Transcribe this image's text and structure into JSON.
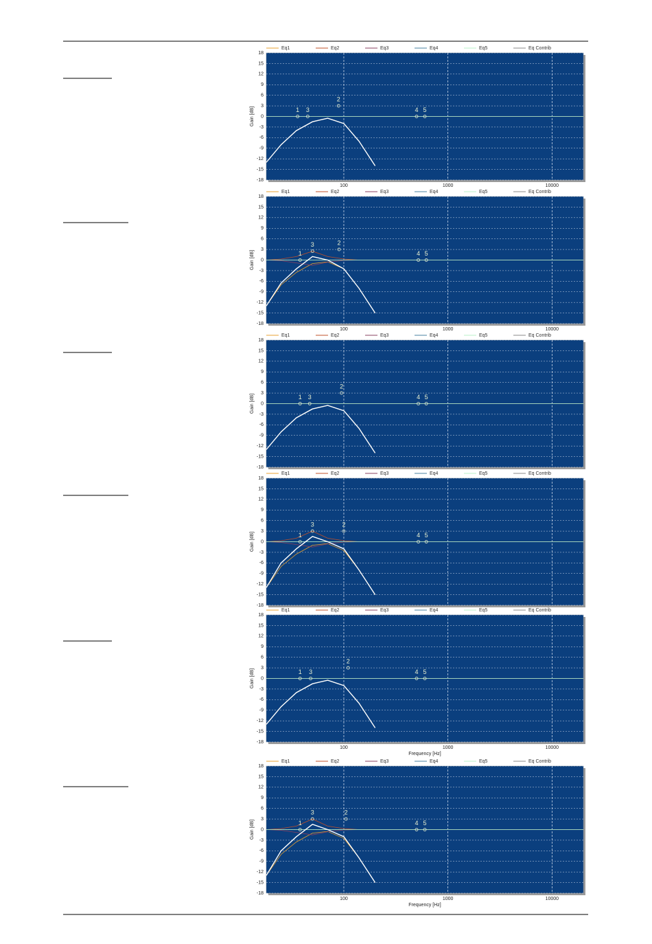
{
  "chart_data": [
    {
      "type": "line",
      "xscale": "log",
      "xlim": [
        18,
        20000
      ],
      "ylim": [
        -18,
        18
      ],
      "ylabel": "Gain [dB]",
      "grid": true,
      "xticks": [
        100,
        1000,
        10000
      ],
      "yticks": [
        18,
        15,
        12,
        9,
        6,
        3,
        0,
        -3,
        -6,
        -9,
        -12,
        -15,
        -18
      ],
      "x": [
        18,
        25,
        35,
        50,
        70,
        100,
        140,
        200,
        280,
        400,
        1000,
        20000
      ],
      "series": [
        {
          "name": "Eq1",
          "color": "#e8a030",
          "values": [
            -13,
            -8,
            -4,
            -1.5,
            -0.5,
            -2,
            -7,
            -14,
            null,
            null,
            null,
            null
          ]
        },
        {
          "name": "Eq2",
          "color": "#c0502a",
          "values": [
            0,
            0,
            0,
            0,
            0,
            0,
            0,
            0,
            0,
            0,
            0,
            0
          ]
        },
        {
          "name": "Eq3",
          "color": "#8a4060",
          "values": [
            0,
            0,
            0,
            0,
            0,
            0,
            0,
            0,
            0,
            0,
            0,
            0
          ]
        },
        {
          "name": "Eq4",
          "color": "#4a80a0",
          "values": [
            0,
            0,
            0,
            0,
            0,
            0,
            0,
            0,
            0,
            0,
            0,
            0
          ]
        },
        {
          "name": "Eq5",
          "color": "#b8f0c8",
          "values": [
            0,
            0,
            0,
            0,
            0,
            0,
            0,
            0,
            0,
            0,
            0,
            0
          ]
        },
        {
          "name": "Eq Contrib",
          "color": "#ffffff",
          "values": [
            -13,
            -8,
            -4,
            -1.5,
            -0.5,
            -2,
            -7,
            -14,
            null,
            null,
            null,
            null
          ]
        }
      ],
      "markers": [
        {
          "label": "1",
          "x": 36,
          "y": 0
        },
        {
          "label": "3",
          "x": 45,
          "y": 0
        },
        {
          "label": "2",
          "x": 89,
          "y": 3
        },
        {
          "label": "4",
          "x": 500,
          "y": 0
        },
        {
          "label": "5",
          "x": 600,
          "y": 0
        }
      ]
    },
    {
      "type": "line",
      "xscale": "log",
      "xlim": [
        18,
        20000
      ],
      "ylim": [
        -18,
        18
      ],
      "ylabel": "Gain [dB]",
      "grid": true,
      "xticks": [
        100,
        1000,
        10000
      ],
      "yticks": [
        18,
        15,
        12,
        9,
        6,
        3,
        0,
        -3,
        -6,
        -9,
        -12,
        -15,
        -18
      ],
      "x": [
        18,
        25,
        35,
        50,
        70,
        100,
        140,
        200,
        280,
        400,
        1000,
        20000
      ],
      "series": [
        {
          "name": "Eq1",
          "color": "#e8a030",
          "values": [
            -13,
            -7,
            -3.5,
            -1,
            -0.5,
            -2.5,
            -8,
            -15,
            null,
            null,
            null,
            null
          ]
        },
        {
          "name": "Eq2",
          "color": "#c0502a",
          "values": [
            0,
            0.3,
            1,
            2.5,
            1,
            0.3,
            0,
            0,
            0,
            0,
            0,
            0
          ]
        },
        {
          "name": "Eq3",
          "color": "#8a4060",
          "values": [
            0,
            -0.2,
            -0.8,
            -1.5,
            -0.6,
            -0.1,
            0,
            0,
            0,
            0,
            0,
            0
          ]
        },
        {
          "name": "Eq4",
          "color": "#4a80a0",
          "values": [
            0,
            0,
            0,
            0,
            0,
            0,
            0,
            0,
            0,
            0,
            0,
            0
          ]
        },
        {
          "name": "Eq5",
          "color": "#b8f0c8",
          "values": [
            0,
            0,
            0,
            0,
            0,
            0,
            0,
            0,
            0,
            0,
            0,
            0
          ]
        },
        {
          "name": "Eq Contrib",
          "color": "#ffffff",
          "values": [
            -13,
            -6.5,
            -2.5,
            1,
            0,
            -2.5,
            -8,
            -15,
            null,
            null,
            null,
            null
          ]
        }
      ],
      "markers": [
        {
          "label": "1",
          "x": 38,
          "y": 0
        },
        {
          "label": "3",
          "x": 50,
          "y": 2.5
        },
        {
          "label": "2",
          "x": 90,
          "y": 3
        },
        {
          "label": "4",
          "x": 520,
          "y": 0
        },
        {
          "label": "5",
          "x": 620,
          "y": 0
        }
      ]
    },
    {
      "type": "line",
      "xscale": "log",
      "xlim": [
        18,
        20000
      ],
      "ylim": [
        -18,
        18
      ],
      "ylabel": "Gain [dB]",
      "grid": true,
      "xticks": [
        100,
        1000,
        10000
      ],
      "yticks": [
        18,
        15,
        12,
        9,
        6,
        3,
        0,
        -3,
        -6,
        -9,
        -12,
        -15,
        -18
      ],
      "x": [
        18,
        25,
        35,
        50,
        70,
        100,
        140,
        200,
        280,
        400,
        1000,
        20000
      ],
      "series": [
        {
          "name": "Eq1",
          "color": "#e8a030",
          "values": [
            -13,
            -8,
            -4,
            -1.5,
            -0.5,
            -2,
            -7,
            -14,
            null,
            null,
            null,
            null
          ]
        },
        {
          "name": "Eq2",
          "color": "#c0502a",
          "values": [
            0,
            0,
            0,
            0,
            0,
            0,
            0,
            0,
            0,
            0,
            0,
            0
          ]
        },
        {
          "name": "Eq3",
          "color": "#8a4060",
          "values": [
            0,
            0,
            0,
            0,
            0,
            0,
            0,
            0,
            0,
            0,
            0,
            0
          ]
        },
        {
          "name": "Eq4",
          "color": "#4a80a0",
          "values": [
            0,
            0,
            0,
            0,
            0,
            0,
            0,
            0,
            0,
            0,
            0,
            0
          ]
        },
        {
          "name": "Eq5",
          "color": "#b8f0c8",
          "values": [
            0,
            0,
            0,
            0,
            0,
            0,
            0,
            0,
            0,
            0,
            0,
            0
          ]
        },
        {
          "name": "Eq Contrib",
          "color": "#ffffff",
          "values": [
            -13,
            -8,
            -4,
            -1.5,
            -0.5,
            -2,
            -7,
            -14,
            null,
            null,
            null,
            null
          ]
        }
      ],
      "markers": [
        {
          "label": "1",
          "x": 38,
          "y": 0
        },
        {
          "label": "3",
          "x": 47,
          "y": 0
        },
        {
          "label": "2",
          "x": 95,
          "y": 3
        },
        {
          "label": "4",
          "x": 520,
          "y": 0
        },
        {
          "label": "5",
          "x": 620,
          "y": 0
        }
      ]
    },
    {
      "type": "line",
      "xscale": "log",
      "xlim": [
        18,
        20000
      ],
      "ylim": [
        -18,
        18
      ],
      "ylabel": "Gain [dB]",
      "grid": true,
      "xticks": [
        100,
        1000,
        10000
      ],
      "yticks": [
        18,
        15,
        12,
        9,
        6,
        3,
        0,
        -3,
        -6,
        -9,
        -12,
        -15,
        -18
      ],
      "x": [
        18,
        25,
        35,
        50,
        70,
        100,
        140,
        200,
        280,
        400,
        1000,
        20000
      ],
      "series": [
        {
          "name": "Eq1",
          "color": "#e8a030",
          "values": [
            -13,
            -7,
            -3.5,
            -1,
            -0.5,
            -2.5,
            -8,
            -15,
            null,
            null,
            null,
            null
          ]
        },
        {
          "name": "Eq2",
          "color": "#c0502a",
          "values": [
            0,
            0.3,
            1,
            3,
            1,
            0.3,
            0,
            0,
            0,
            0,
            0,
            0
          ]
        },
        {
          "name": "Eq3",
          "color": "#8a4060",
          "values": [
            0,
            -0.2,
            -0.8,
            -1.5,
            -0.6,
            -0.1,
            0,
            0,
            0,
            0,
            0,
            0
          ]
        },
        {
          "name": "Eq4",
          "color": "#4a80a0",
          "values": [
            0,
            0,
            0,
            0,
            0,
            0,
            0,
            0,
            0,
            0,
            0,
            0
          ]
        },
        {
          "name": "Eq5",
          "color": "#b8f0c8",
          "values": [
            0,
            0,
            0,
            0,
            0,
            0,
            0,
            0,
            0,
            0,
            0,
            0
          ]
        },
        {
          "name": "Eq Contrib",
          "color": "#ffffff",
          "values": [
            -13,
            -6,
            -2,
            1.5,
            0,
            -2,
            -8,
            -15,
            null,
            null,
            null,
            null
          ]
        }
      ],
      "markers": [
        {
          "label": "1",
          "x": 38,
          "y": 0
        },
        {
          "label": "3",
          "x": 50,
          "y": 3
        },
        {
          "label": "2",
          "x": 100,
          "y": 3
        },
        {
          "label": "4",
          "x": 520,
          "y": 0
        },
        {
          "label": "5",
          "x": 620,
          "y": 0
        }
      ]
    },
    {
      "type": "line",
      "xscale": "log",
      "xlim": [
        18,
        20000
      ],
      "ylim": [
        -18,
        18
      ],
      "ylabel": "Gain [dB]",
      "xlabel": "Frequency [Hz]",
      "grid": true,
      "xticks": [
        100,
        1000,
        10000
      ],
      "yticks": [
        18,
        15,
        12,
        9,
        6,
        3,
        0,
        -3,
        -6,
        -9,
        -12,
        -15,
        -18
      ],
      "x": [
        18,
        25,
        35,
        50,
        70,
        100,
        140,
        200,
        280,
        400,
        1000,
        20000
      ],
      "series": [
        {
          "name": "Eq1",
          "color": "#e8a030",
          "values": [
            -13,
            -8,
            -4,
            -1.5,
            -0.5,
            -2,
            -7,
            -14,
            null,
            null,
            null,
            null
          ]
        },
        {
          "name": "Eq2",
          "color": "#c0502a",
          "values": [
            0,
            0,
            0,
            0,
            0,
            0,
            0,
            0,
            0,
            0,
            0,
            0
          ]
        },
        {
          "name": "Eq3",
          "color": "#8a4060",
          "values": [
            0,
            0,
            0,
            0,
            0,
            0,
            0,
            0,
            0,
            0,
            0,
            0
          ]
        },
        {
          "name": "Eq4",
          "color": "#4a80a0",
          "values": [
            0,
            0,
            0,
            0,
            0,
            0,
            0,
            0,
            0,
            0,
            0,
            0
          ]
        },
        {
          "name": "Eq5",
          "color": "#b8f0c8",
          "values": [
            0,
            0,
            0,
            0,
            0,
            0,
            0,
            0,
            0,
            0,
            0,
            0
          ]
        },
        {
          "name": "Eq Contrib",
          "color": "#ffffff",
          "values": [
            -13,
            -8,
            -4,
            -1.5,
            -0.5,
            -2,
            -7,
            -14,
            null,
            null,
            null,
            null
          ]
        }
      ],
      "markers": [
        {
          "label": "1",
          "x": 38,
          "y": 0
        },
        {
          "label": "3",
          "x": 48,
          "y": 0
        },
        {
          "label": "2",
          "x": 110,
          "y": 3
        },
        {
          "label": "4",
          "x": 500,
          "y": 0
        },
        {
          "label": "5",
          "x": 600,
          "y": 0
        }
      ]
    },
    {
      "type": "line",
      "xscale": "log",
      "xlim": [
        18,
        20000
      ],
      "ylim": [
        -18,
        18
      ],
      "ylabel": "Gain [dB]",
      "xlabel": "Frequency [Hz]",
      "grid": true,
      "xticks": [
        100,
        1000,
        10000
      ],
      "yticks": [
        18,
        15,
        12,
        9,
        6,
        3,
        0,
        -3,
        -6,
        -9,
        -12,
        -15,
        -18
      ],
      "x": [
        18,
        25,
        35,
        50,
        70,
        100,
        140,
        200,
        280,
        400,
        1000,
        20000
      ],
      "series": [
        {
          "name": "Eq1",
          "color": "#e8a030",
          "values": [
            -13,
            -7,
            -3.5,
            -1,
            -0.5,
            -2.5,
            -8,
            -15,
            null,
            null,
            null,
            null
          ]
        },
        {
          "name": "Eq2",
          "color": "#c0502a",
          "values": [
            0,
            0.3,
            1,
            3,
            1,
            0.3,
            0,
            0,
            0,
            0,
            0,
            0
          ]
        },
        {
          "name": "Eq3",
          "color": "#8a4060",
          "values": [
            0,
            -0.2,
            -0.8,
            -1.5,
            -0.6,
            -0.1,
            0,
            0,
            0,
            0,
            0,
            0
          ]
        },
        {
          "name": "Eq4",
          "color": "#4a80a0",
          "values": [
            0,
            0,
            0,
            0,
            0,
            0,
            0,
            0,
            0,
            0,
            0,
            0
          ]
        },
        {
          "name": "Eq5",
          "color": "#b8f0c8",
          "values": [
            0,
            0,
            0,
            0,
            0,
            0,
            0,
            0,
            0,
            0,
            0,
            0
          ]
        },
        {
          "name": "Eq Contrib",
          "color": "#ffffff",
          "values": [
            -13,
            -6,
            -2,
            1.5,
            0,
            -2,
            -8,
            -15,
            null,
            null,
            null,
            null
          ]
        }
      ],
      "markers": [
        {
          "label": "1",
          "x": 38,
          "y": 0
        },
        {
          "label": "3",
          "x": 50,
          "y": 3
        },
        {
          "label": "2",
          "x": 105,
          "y": 3
        },
        {
          "label": "4",
          "x": 500,
          "y": 0
        },
        {
          "label": "5",
          "x": 600,
          "y": 0
        }
      ]
    }
  ]
}
